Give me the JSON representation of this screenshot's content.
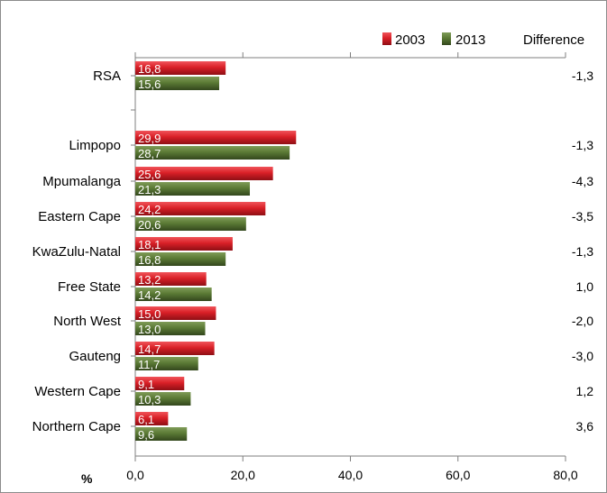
{
  "chart_data": {
    "type": "bar",
    "orientation": "horizontal",
    "categories": [
      "RSA",
      "",
      "Limpopo",
      "Mpumalanga",
      "Eastern Cape",
      "KwaZulu-Natal",
      "Free State",
      "North West",
      "Gauteng",
      "Western Cape",
      "Northern Cape"
    ],
    "series": [
      {
        "name": "2003",
        "color": "#d92027",
        "values": [
          16.8,
          null,
          29.9,
          25.6,
          24.2,
          18.1,
          13.2,
          15.0,
          14.7,
          9.1,
          6.1
        ],
        "labels": [
          "16,8",
          "",
          "29,9",
          "25,6",
          "24,2",
          "18,1",
          "13,2",
          "15,0",
          "14,7",
          "9,1",
          "6,1"
        ]
      },
      {
        "name": "2013",
        "color": "#5b7a35",
        "values": [
          15.6,
          null,
          28.7,
          21.3,
          20.6,
          16.8,
          14.2,
          13.0,
          11.7,
          10.3,
          9.6
        ],
        "labels": [
          "15,6",
          "",
          "28,7",
          "21,3",
          "20,6",
          "16,8",
          "14,2",
          "13,0",
          "11,7",
          "10,3",
          "9,6"
        ]
      }
    ],
    "difference": {
      "header": "Difference",
      "values": [
        "-1,3",
        "",
        "-1,3",
        "-4,3",
        "-3,5",
        "-1,3",
        "1,0",
        "-2,0",
        "-3,0",
        "1,2",
        "3,6"
      ]
    },
    "xlim": [
      0,
      80
    ],
    "xticks": [
      "0,0",
      "20,0",
      "40,0",
      "60,0",
      "80,0"
    ],
    "xlabel": "%",
    "legend": {
      "placement": "top-right",
      "entries": [
        "2003",
        "2013"
      ]
    },
    "grid": false
  }
}
